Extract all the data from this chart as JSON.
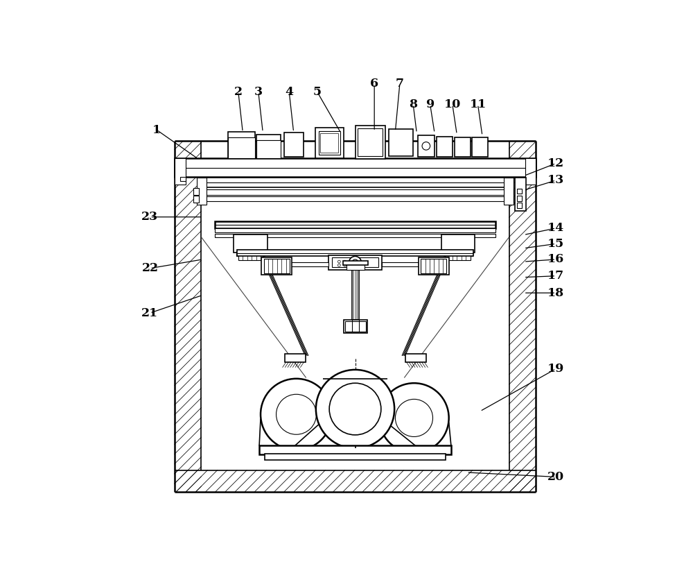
{
  "bg_color": "#ffffff",
  "line_color": "#000000",
  "figsize": [
    10.0,
    8.36
  ],
  "dpi": 100,
  "labels_data": [
    [
      1,
      0.055,
      0.865,
      0.148,
      0.8
    ],
    [
      2,
      0.238,
      0.95,
      0.248,
      0.86
    ],
    [
      3,
      0.283,
      0.95,
      0.293,
      0.86
    ],
    [
      4,
      0.352,
      0.95,
      0.362,
      0.86
    ],
    [
      5,
      0.415,
      0.95,
      0.468,
      0.858
    ],
    [
      6,
      0.543,
      0.968,
      0.543,
      0.862
    ],
    [
      7,
      0.6,
      0.968,
      0.59,
      0.862
    ],
    [
      8,
      0.63,
      0.922,
      0.638,
      0.858
    ],
    [
      9,
      0.668,
      0.922,
      0.678,
      0.858
    ],
    [
      10,
      0.718,
      0.922,
      0.728,
      0.855
    ],
    [
      11,
      0.775,
      0.922,
      0.785,
      0.852
    ],
    [
      12,
      0.95,
      0.79,
      0.878,
      0.762
    ],
    [
      13,
      0.95,
      0.752,
      0.878,
      0.73
    ],
    [
      14,
      0.95,
      0.645,
      0.878,
      0.63
    ],
    [
      15,
      0.95,
      0.61,
      0.878,
      0.6
    ],
    [
      16,
      0.95,
      0.575,
      0.878,
      0.57
    ],
    [
      17,
      0.95,
      0.538,
      0.878,
      0.535
    ],
    [
      18,
      0.95,
      0.5,
      0.878,
      0.5
    ],
    [
      19,
      0.95,
      0.33,
      0.78,
      0.235
    ],
    [
      20,
      0.95,
      0.088,
      0.75,
      0.098
    ],
    [
      21,
      0.04,
      0.455,
      0.158,
      0.495
    ],
    [
      22,
      0.04,
      0.555,
      0.158,
      0.575
    ],
    [
      23,
      0.04,
      0.67,
      0.158,
      0.67
    ]
  ]
}
